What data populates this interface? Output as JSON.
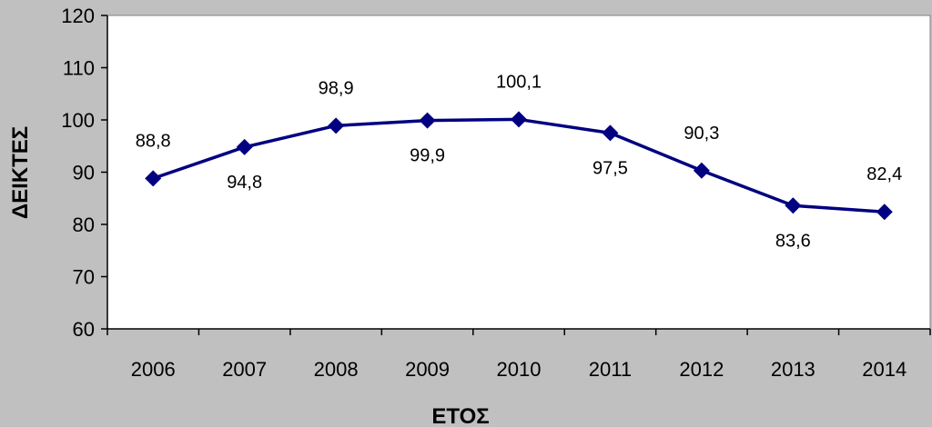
{
  "chart_data": {
    "type": "line",
    "title": "",
    "xlabel": "ΕΤΟΣ",
    "ylabel": "ΔΕΙΚΤΕΣ",
    "categories": [
      "2006",
      "2007",
      "2008",
      "2009",
      "2010",
      "2011",
      "2012",
      "2013",
      "2014"
    ],
    "series": [
      {
        "values": [
          88.8,
          94.8,
          98.9,
          99.9,
          100.1,
          97.5,
          90.3,
          83.6,
          82.4
        ],
        "labels": [
          "88,8",
          "94,8",
          "98,9",
          "99,9",
          "100,1",
          "97,5",
          "90,3",
          "83,6",
          "82,4"
        ],
        "label_positions": [
          "above",
          "below",
          "above",
          "below",
          "above",
          "below",
          "above",
          "below",
          "above"
        ]
      }
    ],
    "ylim": [
      60,
      120
    ],
    "yticks": [
      60,
      70,
      80,
      90,
      100,
      110,
      120
    ],
    "grid": false,
    "legend": "none",
    "marker": "diamond",
    "colors": {
      "line": "#000080",
      "marker": "#000080",
      "plot_background": "#ffffff",
      "outer_background": "#c0c0c0",
      "axis": "#000000"
    }
  }
}
